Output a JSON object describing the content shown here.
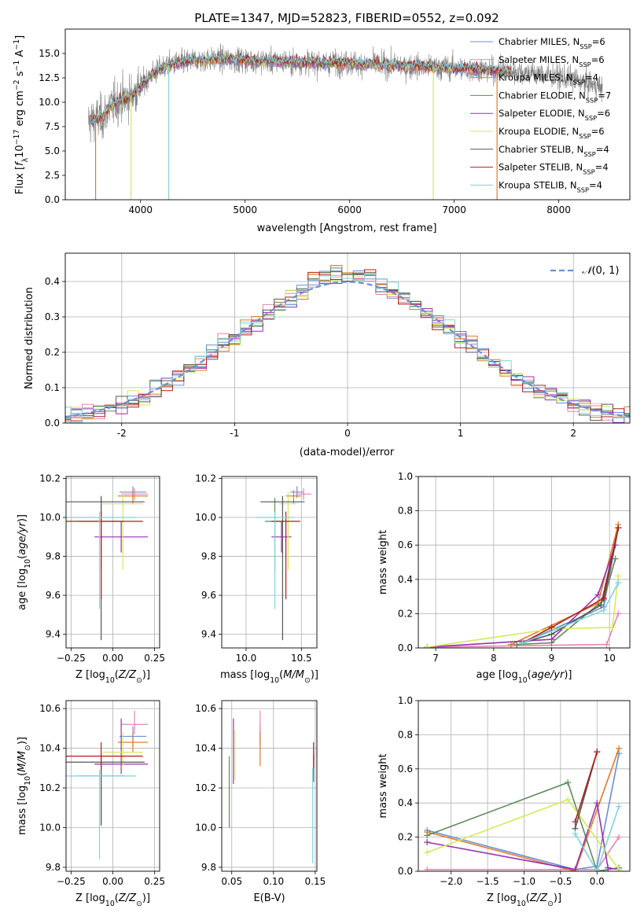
{
  "figure_title": "PLATE=1347, MJD=52823, FIBERID=0552, z=0.092",
  "series_colors": {
    "chabrier_miles": "#6a8fd6",
    "salpeter_miles": "#e684b5",
    "kroupa_miles": "#e07b2a",
    "chabrier_elodie": "#5b8c5a",
    "salpeter_elodie": "#9a2fb3",
    "kroupa_elodie": "#d7e85a",
    "chabrier_stelib": "#555555",
    "salpeter_stelib": "#b01e1e",
    "kroupa_stelib": "#7fd3dc",
    "data": "#808080",
    "normal": "#6a8fd6"
  },
  "chart_data": [
    {
      "id": "spectrum",
      "type": "line",
      "title": "PLATE=1347, MJD=52823, FIBERID=0552, z=0.092",
      "xlabel": "wavelength [Angstrom, rest frame]",
      "ylabel": "Flux [f_λ 10^-17 erg cm^-2 s^-1 A^-1]",
      "xlim": [
        3280,
        8680
      ],
      "ylim": [
        0,
        17.5
      ],
      "xticks": [
        4000,
        5000,
        6000,
        7000,
        8000
      ],
      "yticks": [
        0.0,
        2.5,
        5.0,
        7.5,
        10.0,
        12.5,
        15.0
      ],
      "grid": false,
      "legend_position": "right",
      "legend": [
        {
          "key": "chabrier_miles",
          "label": "Chabrier MILES, N",
          "sub": "SSP",
          "tail": "=6"
        },
        {
          "key": "salpeter_miles",
          "label": "Salpeter MILES, N",
          "sub": "SSP",
          "tail": "=6"
        },
        {
          "key": "kroupa_miles",
          "label": "Kroupa MILES, N",
          "sub": "SSP",
          "tail": "=4"
        },
        {
          "key": "chabrier_elodie",
          "label": "Chabrier ELODIE, N",
          "sub": "SSP",
          "tail": "=7"
        },
        {
          "key": "salpeter_elodie",
          "label": "Salpeter ELODIE, N",
          "sub": "SSP",
          "tail": "=6"
        },
        {
          "key": "kroupa_elodie",
          "label": "Kroupa ELODIE, N",
          "sub": "SSP",
          "tail": "=6"
        },
        {
          "key": "chabrier_stelib",
          "label": "Chabrier STELIB, N",
          "sub": "SSP",
          "tail": "=4"
        },
        {
          "key": "salpeter_stelib",
          "label": "Salpeter STELIB, N",
          "sub": "SSP",
          "tail": "=4"
        },
        {
          "key": "kroupa_stelib",
          "label": "Kroupa STELIB, N",
          "sub": "SSP",
          "tail": "=4"
        }
      ],
      "continuum": {
        "wavelength": [
          3500,
          3650,
          3700,
          3800,
          3900,
          4000,
          4100,
          4200,
          4300,
          4500,
          4800,
          5200,
          5600,
          6000,
          6400,
          6800,
          7200,
          7500,
          7800,
          8100,
          8300,
          8400
        ],
        "flux": [
          8.0,
          8.5,
          9.5,
          10.2,
          10.6,
          11.6,
          12.8,
          13.5,
          13.9,
          14.3,
          14.4,
          14.2,
          14.1,
          14.0,
          13.8,
          13.6,
          13.4,
          13.2,
          12.9,
          12.4,
          11.9,
          11.5
        ]
      },
      "dropouts": [
        {
          "series": "kroupa_miles",
          "wavelength": 3570
        },
        {
          "series": "kroupa_elodie",
          "wavelength": 3910
        },
        {
          "series": "kroupa_stelib",
          "wavelength": 4270
        },
        {
          "series": "kroupa_elodie",
          "wavelength": 6800
        },
        {
          "series": "kroupa_miles",
          "wavelength": 7410
        }
      ]
    },
    {
      "id": "residuals",
      "type": "line",
      "xlabel": "(data-model)/error",
      "ylabel": "Normed distribution",
      "xlim": [
        -2.5,
        2.5
      ],
      "ylim": [
        0,
        0.48
      ],
      "xticks": [
        -2,
        -1,
        0,
        1,
        2
      ],
      "yticks": [
        0.0,
        0.1,
        0.2,
        0.3,
        0.4
      ],
      "grid": true,
      "legend_position": "top-right",
      "legend": [
        {
          "key": "normal",
          "label": "𝒩(0, 1)"
        }
      ],
      "bin_width": 0.1
    },
    {
      "id": "age_vs_Z",
      "type": "scatter",
      "xlabel": "Z [log10(Z/Z⊙)]",
      "ylabel": "age [log10(age/yr)]",
      "xlim": [
        -0.28,
        0.28
      ],
      "ylim": [
        9.33,
        10.21
      ],
      "xticks": [
        -0.25,
        0.0,
        0.25
      ],
      "xtick_labels": [
        "−0.25",
        "0.00",
        "0.25"
      ],
      "yticks": [
        9.4,
        9.6,
        9.8,
        10.0,
        10.2
      ],
      "grid": true,
      "points": [
        {
          "series": "chabrier_miles",
          "x": 0.12,
          "xerr": 0.08,
          "y": 10.13,
          "yerr_lo": 0.03,
          "yerr_hi": 0.03
        },
        {
          "series": "salpeter_miles",
          "x": 0.13,
          "xerr": 0.08,
          "y": 10.12,
          "yerr_lo": 0.03,
          "yerr_hi": 0.03
        },
        {
          "series": "kroupa_miles",
          "x": 0.12,
          "xerr": 0.09,
          "y": 10.11,
          "yerr_lo": 0.04,
          "yerr_hi": 0.03
        },
        {
          "series": "chabrier_elodie",
          "x": -0.07,
          "xerr": 0.14,
          "y": 9.98,
          "yerr_lo": 0.25,
          "yerr_hi": 0.12
        },
        {
          "series": "salpeter_elodie",
          "x": 0.05,
          "xerr": 0.16,
          "y": 9.9,
          "yerr_lo": 0.08,
          "yerr_hi": 0.08
        },
        {
          "series": "kroupa_elodie",
          "x": 0.06,
          "xerr": 0.12,
          "y": 10.07,
          "yerr_lo": 0.34,
          "yerr_hi": 0.06
        },
        {
          "series": "chabrier_stelib",
          "x": -0.07,
          "xerr": 0.26,
          "y": 10.08,
          "yerr_lo": 0.71,
          "yerr_hi": 0.03
        },
        {
          "series": "salpeter_stelib",
          "x": -0.07,
          "xerr": 0.25,
          "y": 9.98,
          "yerr_lo": 0.4,
          "yerr_hi": 0.05
        },
        {
          "series": "kroupa_stelib",
          "x": -0.08,
          "xerr": 0.22,
          "y": 10.0,
          "yerr_lo": 0.47,
          "yerr_hi": 0.03
        }
      ]
    },
    {
      "id": "age_vs_mass",
      "type": "scatter",
      "xlabel": "mass [log10(M/M⊙)]",
      "xlim": [
        9.78,
        10.64
      ],
      "ylim": [
        9.33,
        10.21
      ],
      "xticks": [
        10.0,
        10.5
      ],
      "xtick_labels": [
        "10.0",
        "10.5"
      ],
      "yticks": [
        9.4,
        9.6,
        9.8,
        10.0,
        10.2
      ],
      "grid": true,
      "points": [
        {
          "series": "chabrier_miles",
          "x": 10.46,
          "xerr": 0.06,
          "y": 10.13,
          "yerr_lo": 0.03,
          "yerr_hi": 0.03
        },
        {
          "series": "salpeter_miles",
          "x": 10.52,
          "xerr": 0.07,
          "y": 10.12,
          "yerr_lo": 0.03,
          "yerr_hi": 0.03
        },
        {
          "series": "kroupa_miles",
          "x": 10.43,
          "xerr": 0.07,
          "y": 10.11,
          "yerr_lo": 0.04,
          "yerr_hi": 0.03
        },
        {
          "series": "chabrier_elodie",
          "x": 10.26,
          "xerr": 0.09,
          "y": 9.98,
          "yerr_lo": 0.25,
          "yerr_hi": 0.12
        },
        {
          "series": "salpeter_elodie",
          "x": 10.32,
          "xerr": 0.09,
          "y": 9.9,
          "yerr_lo": 0.08,
          "yerr_hi": 0.08
        },
        {
          "series": "kroupa_elodie",
          "x": 10.38,
          "xerr": 0.08,
          "y": 10.07,
          "yerr_lo": 0.34,
          "yerr_hi": 0.06
        },
        {
          "series": "chabrier_stelib",
          "x": 10.33,
          "xerr": 0.2,
          "y": 10.08,
          "yerr_lo": 0.71,
          "yerr_hi": 0.03
        },
        {
          "series": "salpeter_stelib",
          "x": 10.36,
          "xerr": 0.13,
          "y": 9.98,
          "yerr_lo": 0.4,
          "yerr_hi": 0.05
        },
        {
          "series": "kroupa_stelib",
          "x": 10.26,
          "xerr": 0.17,
          "y": 10.0,
          "yerr_lo": 0.47,
          "yerr_hi": 0.03
        }
      ]
    },
    {
      "id": "weight_vs_age",
      "type": "line",
      "xlabel": "age [log10(age/yr)]",
      "ylabel": "mass weight",
      "xlim": [
        6.7,
        10.35
      ],
      "ylim": [
        0,
        1.0
      ],
      "xticks": [
        7,
        8,
        9,
        10
      ],
      "xtick_labels": [
        "7",
        "8",
        "9",
        "10"
      ],
      "yticks": [
        0.0,
        0.2,
        0.4,
        0.6,
        0.8,
        1.0
      ],
      "grid": true,
      "series": [
        {
          "series": "chabrier_miles",
          "x": [
            8.5,
            9.9,
            10.15
          ],
          "y": [
            0.03,
            0.24,
            0.7
          ]
        },
        {
          "series": "salpeter_miles",
          "x": [
            6.85,
            9.95,
            10.15
          ],
          "y": [
            0.005,
            0.02,
            0.2
          ]
        },
        {
          "series": "kroupa_miles",
          "x": [
            8.3,
            9.8,
            10.15
          ],
          "y": [
            0.02,
            0.26,
            0.72
          ]
        },
        {
          "series": "chabrier_elodie",
          "x": [
            8.4,
            9.0,
            9.9,
            10.1
          ],
          "y": [
            0.02,
            0.03,
            0.28,
            0.52
          ]
        },
        {
          "series": "salpeter_elodie",
          "x": [
            6.85,
            9.0,
            9.8,
            10.1
          ],
          "y": [
            0.005,
            0.05,
            0.31,
            0.6
          ]
        },
        {
          "series": "kroupa_elodie",
          "x": [
            6.85,
            9.0,
            10.05,
            10.15
          ],
          "y": [
            0.005,
            0.11,
            0.12,
            0.42
          ]
        },
        {
          "series": "chabrier_stelib",
          "x": [
            8.5,
            9.0,
            9.85,
            10.15
          ],
          "y": [
            0.03,
            0.08,
            0.25,
            0.7
          ]
        },
        {
          "series": "salpeter_stelib",
          "x": [
            8.5,
            9.0,
            9.9,
            10.15
          ],
          "y": [
            0.03,
            0.12,
            0.29,
            0.7
          ]
        },
        {
          "series": "kroupa_stelib",
          "x": [
            8.5,
            9.9,
            10.15
          ],
          "y": [
            0.03,
            0.22,
            0.38
          ]
        }
      ]
    },
    {
      "id": "mass_vs_Z",
      "type": "scatter",
      "xlabel": "Z [log10(Z/Z⊙)]",
      "ylabel": "mass [log10(M/M⊙)]",
      "xlim": [
        -0.28,
        0.28
      ],
      "ylim": [
        9.78,
        10.64
      ],
      "xticks": [
        -0.25,
        0.0,
        0.25
      ],
      "xtick_labels": [
        "−0.25",
        "0.00",
        "0.25"
      ],
      "yticks": [
        9.8,
        10.0,
        10.2,
        10.4,
        10.6
      ],
      "grid": true,
      "points": [
        {
          "series": "chabrier_miles",
          "x": 0.12,
          "xerr": 0.08,
          "y": 10.46,
          "yerr_lo": 0.05,
          "yerr_hi": 0.05
        },
        {
          "series": "salpeter_miles",
          "x": 0.13,
          "xerr": 0.08,
          "y": 10.52,
          "yerr_lo": 0.05,
          "yerr_hi": 0.07
        },
        {
          "series": "kroupa_miles",
          "x": 0.12,
          "xerr": 0.09,
          "y": 10.43,
          "yerr_lo": 0.05,
          "yerr_hi": 0.05
        },
        {
          "series": "chabrier_elodie",
          "x": -0.07,
          "xerr": 0.14,
          "y": 10.26,
          "yerr_lo": 0.24,
          "yerr_hi": 0.05
        },
        {
          "series": "salpeter_elodie",
          "x": 0.05,
          "xerr": 0.16,
          "y": 10.32,
          "yerr_lo": 0.05,
          "yerr_hi": 0.23
        },
        {
          "series": "kroupa_elodie",
          "x": 0.06,
          "xerr": 0.12,
          "y": 10.38,
          "yerr_lo": 0.07,
          "yerr_hi": 0.1
        },
        {
          "series": "chabrier_stelib",
          "x": -0.07,
          "xerr": 0.26,
          "y": 10.33,
          "yerr_lo": 0.32,
          "yerr_hi": 0.04
        },
        {
          "series": "salpeter_stelib",
          "x": -0.07,
          "xerr": 0.25,
          "y": 10.36,
          "yerr_lo": 0.07,
          "yerr_hi": 0.07
        },
        {
          "series": "kroupa_stelib",
          "x": -0.08,
          "xerr": 0.22,
          "y": 10.26,
          "yerr_lo": 0.42,
          "yerr_hi": 0.03
        }
      ]
    },
    {
      "id": "mass_vs_ebv",
      "type": "scatter",
      "xlabel": "E(B-V)",
      "xlim": [
        0.038,
        0.152
      ],
      "ylim": [
        9.78,
        10.64
      ],
      "xticks": [
        0.05,
        0.1,
        0.15
      ],
      "xtick_labels": [
        "0.05",
        "0.10",
        "0.15"
      ],
      "yticks": [
        9.8,
        10.0,
        10.2,
        10.4,
        10.6
      ],
      "grid": true,
      "points": [
        {
          "series": "chabrier_miles",
          "x": 0.084,
          "y": 10.46,
          "yerr_lo": 0.05,
          "yerr_hi": 0.05
        },
        {
          "series": "salpeter_miles",
          "x": 0.084,
          "y": 10.52,
          "yerr_lo": 0.05,
          "yerr_hi": 0.07
        },
        {
          "series": "kroupa_miles",
          "x": 0.084,
          "y": 10.43,
          "yerr_lo": 0.12,
          "yerr_hi": 0.05
        },
        {
          "series": "chabrier_elodie",
          "x": 0.047,
          "y": 10.18,
          "yerr_lo": 0.18,
          "yerr_hi": 0.18
        },
        {
          "series": "salpeter_elodie",
          "x": 0.052,
          "y": 10.4,
          "yerr_lo": 0.18,
          "yerr_hi": 0.15
        },
        {
          "series": "kroupa_elodie",
          "x": 0.054,
          "y": 10.32,
          "yerr_lo": 0.08,
          "yerr_hi": 0.17
        },
        {
          "series": "chabrier_stelib",
          "x": 0.148,
          "y": 10.33,
          "yerr_lo": 0.1,
          "yerr_hi": 0.04
        },
        {
          "series": "salpeter_stelib",
          "x": 0.148,
          "y": 10.36,
          "yerr_lo": 0.06,
          "yerr_hi": 0.07
        },
        {
          "series": "kroupa_stelib",
          "x": 0.147,
          "y": 10.05,
          "yerr_lo": 0.23,
          "yerr_hi": 0.25
        }
      ]
    },
    {
      "id": "weight_vs_Z",
      "type": "line",
      "xlabel": "Z [log10(Z/Z⊙)]",
      "ylabel": "mass weight",
      "xlim": [
        -2.45,
        0.45
      ],
      "ylim": [
        0,
        1.0
      ],
      "xticks": [
        -2.0,
        -1.5,
        -1.0,
        -0.5,
        0.0
      ],
      "xtick_labels": [
        "−2.0",
        "−1.5",
        "−1.0",
        "−0.5",
        "0.0"
      ],
      "yticks": [
        0.0,
        0.2,
        0.4,
        0.6,
        0.8,
        1.0
      ],
      "grid": true,
      "series": [
        {
          "series": "chabrier_miles",
          "x": [
            -2.33,
            -0.3,
            0.0,
            0.3
          ],
          "y": [
            0.24,
            0.01,
            0.03,
            0.69
          ]
        },
        {
          "series": "salpeter_miles",
          "x": [
            -2.33,
            0.0,
            0.3
          ],
          "y": [
            0.01,
            0.01,
            0.2
          ]
        },
        {
          "series": "kroupa_miles",
          "x": [
            -2.33,
            -0.3,
            0.3
          ],
          "y": [
            0.23,
            0.0,
            0.72
          ]
        },
        {
          "series": "chabrier_elodie",
          "x": [
            -2.33,
            -0.4,
            0.0,
            0.3
          ],
          "y": [
            0.21,
            0.52,
            0.0,
            0.02
          ]
        },
        {
          "series": "salpeter_elodie",
          "x": [
            -2.33,
            -0.3,
            0.0,
            0.15,
            0.3
          ],
          "y": [
            0.17,
            0.01,
            0.4,
            0.02,
            0.01
          ]
        },
        {
          "series": "kroupa_elodie",
          "x": [
            -2.33,
            -0.4,
            0.3
          ],
          "y": [
            0.11,
            0.42,
            0.01
          ]
        },
        {
          "series": "chabrier_stelib",
          "x": [
            -0.3,
            0.0
          ],
          "y": [
            0.25,
            0.7
          ]
        },
        {
          "series": "salpeter_stelib",
          "x": [
            -0.3,
            0.0
          ],
          "y": [
            0.29,
            0.7
          ]
        },
        {
          "series": "kroupa_stelib",
          "x": [
            -0.3,
            0.0,
            0.3
          ],
          "y": [
            0.22,
            0.0,
            0.38
          ]
        }
      ]
    }
  ]
}
